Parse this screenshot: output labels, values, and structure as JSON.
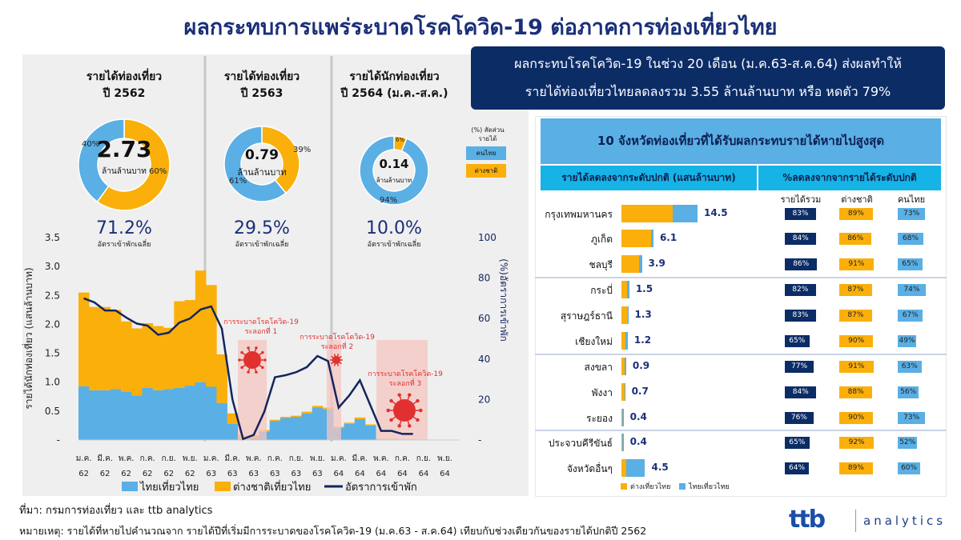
{
  "title": "ผลกระทบการแพร่ระบาดโรคโควิด-19 ต่อภาคการท่องเที่ยวไทย",
  "summary": {
    "lines": [
      "ผลกระทบโรคโควิด-19  ในช่วง 20 เดือน (ม.ค.63-ส.ค.64) ส่งผลทำให้",
      "รายได้ท่องเที่ยวไทยลดลงรวม 3.55 ล้านล้านบาท หรือ หดตัว 79%"
    ]
  },
  "colors": {
    "thai": "#5aafe5",
    "foreign": "#fbaf0a",
    "occupancy": "#14255c",
    "navy": "#0c2c66",
    "covid": "#e03030",
    "wave_shade": "#f4c6c0"
  },
  "panels": [
    {
      "title1": "รายได้ท่องเที่ยว",
      "title2": "ปี 2562",
      "value": "2.73",
      "unit": "ล้านล้านบาท",
      "thai_pct": 40,
      "foreign_pct": 60,
      "thai_label": "40%",
      "foreign_label": "60%",
      "occupancy": "71.2%",
      "occupancy_label": "อัตราเข้าพักเฉลี่ย"
    },
    {
      "title1": "รายได้ท่องเที่ยว",
      "title2": "ปี 2563",
      "value": "0.79",
      "unit": "ล้านล้านบาท",
      "thai_pct": 61,
      "foreign_pct": 39,
      "thai_label": "61%",
      "foreign_label": "39%",
      "occupancy": "29.5%",
      "occupancy_label": "อัตราเข้าพักเฉลี่ย"
    },
    {
      "title1": "รายได้นักท่องเที่ยว",
      "title2": "ปี 2564 (ม.ค.-ส.ค.)",
      "value": "0.14",
      "unit": "ล้านล้านบาท",
      "thai_pct": 94,
      "foreign_pct": 6,
      "thai_label": "94%",
      "foreign_label": "6%",
      "occupancy": "10.0%",
      "occupancy_label": "อัตราเข้าพักเฉลี่ย"
    }
  ],
  "donut_legend": {
    "title1": "(%) สัดส่วน",
    "title2": "รายได้",
    "thai": "คนไทย",
    "foreign": "ต่างชาติ"
  },
  "chart_data": {
    "type": "bar",
    "stacked": true,
    "ylabel": "รายได้นักท่องเที่ยว (แสนล้านบาท)",
    "y2label": "(%)อัตราการเข้าพัก",
    "ylim": [
      0,
      3.5
    ],
    "y2lim": [
      0,
      100
    ],
    "yticks": [
      "-",
      "0.5",
      "1.0",
      "1.5",
      "2.0",
      "2.5",
      "3.0",
      "3.5"
    ],
    "y2ticks": [
      "-",
      "20",
      "40",
      "60",
      "80",
      "100"
    ],
    "xticks": [
      [
        "ม.ค.",
        "62"
      ],
      [
        "มี.ค.",
        "62"
      ],
      [
        "พ.ค.",
        "62"
      ],
      [
        "ก.ค.",
        "62"
      ],
      [
        "ก.ย.",
        "62"
      ],
      [
        "พ.ย.",
        "62"
      ],
      [
        "ม.ค.",
        "63"
      ],
      [
        "มี.ค.",
        "63"
      ],
      [
        "พ.ค.",
        "63"
      ],
      [
        "ก.ค.",
        "63"
      ],
      [
        "ก.ย.",
        "63"
      ],
      [
        "พ.ย.",
        "63"
      ],
      [
        "ม.ค.",
        "64"
      ],
      [
        "มี.ค.",
        "64"
      ],
      [
        "พ.ค.",
        "64"
      ],
      [
        "ก.ค.",
        "64"
      ],
      [
        "ก.ย.",
        "64"
      ],
      [
        "พ.ย.",
        "64"
      ]
    ],
    "categories": [
      "ม.ค. 62",
      "ก.พ. 62",
      "มี.ค. 62",
      "เม.ย. 62",
      "พ.ค. 62",
      "มิ.ย. 62",
      "ก.ค. 62",
      "ส.ค. 62",
      "ก.ย. 62",
      "ต.ค. 62",
      "พ.ย. 62",
      "ธ.ค. 62",
      "ม.ค. 63",
      "ก.พ. 63",
      "มี.ค. 63",
      "เม.ย. 63",
      "พ.ค. 63",
      "มิ.ย. 63",
      "ก.ค. 63",
      "ส.ค. 63",
      "ก.ย. 63",
      "ต.ค. 63",
      "พ.ย. 63",
      "ธ.ค. 63",
      "ม.ค. 64",
      "ก.พ. 64",
      "มี.ค. 64",
      "เม.ย. 64",
      "พ.ค. 64",
      "มิ.ย. 64",
      "ก.ค. 64",
      "ส.ค. 64"
    ],
    "series": [
      {
        "name": "ไทยเที่ยวไทย",
        "type": "bar",
        "axis": "left",
        "values": [
          0.93,
          0.86,
          0.86,
          0.88,
          0.84,
          0.77,
          0.9,
          0.86,
          0.88,
          0.9,
          0.94,
          1.0,
          0.92,
          0.64,
          0.28,
          0.02,
          0.03,
          0.14,
          0.33,
          0.38,
          0.4,
          0.46,
          0.56,
          0.53,
          0.21,
          0.28,
          0.36,
          0.25,
          0.01,
          0.01,
          0.01,
          0.01
        ]
      },
      {
        "name": "ต่างชาติเที่ยวไทย",
        "type": "bar",
        "axis": "left",
        "values": [
          1.62,
          1.44,
          1.44,
          1.37,
          1.21,
          1.16,
          1.12,
          1.11,
          1.06,
          1.5,
          1.48,
          1.93,
          1.76,
          0.84,
          0.18,
          0.06,
          0.05,
          0.03,
          0.02,
          0.02,
          0.02,
          0.03,
          0.03,
          0.03,
          0.02,
          0.02,
          0.03,
          0.02,
          0.01,
          0.01,
          0.0,
          0.0
        ]
      },
      {
        "name": "อัตราการเข้าพัก",
        "type": "line",
        "axis": "right",
        "values": [
          70,
          68,
          64,
          64,
          60.5,
          57.5,
          56.5,
          52,
          53,
          58,
          60,
          64.5,
          66,
          55,
          20,
          0.5,
          2.5,
          14,
          31,
          32,
          33.5,
          36,
          41.5,
          39,
          16,
          22,
          29.5,
          17,
          4.5,
          4.5,
          3,
          3
        ]
      }
    ],
    "waves": [
      {
        "label1": "การระบาดโรคโควิด-19",
        "label2": "ระลอกที่ 1",
        "start": "เม.ย. 63",
        "end": "มิ.ย. 63"
      },
      {
        "label1": "การระบาดโรคโควิด-19",
        "label2": "ระลอกที่ 2",
        "start": "ม.ค. 64",
        "end": "ม.ค. 64"
      },
      {
        "label1": "การระบาดโรคโควิด-19",
        "label2": "ระลอกที่ 3",
        "start": "พ.ค. 64",
        "end": "ก.ย. 64"
      }
    ],
    "legend": [
      "ไทยเที่ยวไทย",
      "ต่างชาติเที่ยวไทย",
      "อัตราการเข้าพัก"
    ],
    "legend_position": "bottom",
    "grid": false
  },
  "table": {
    "title": "10 จังหวัดท่องเที่ยวที่ได้รับผลกระทบรายได้หายไปสูงสุด",
    "left_header": "รายได้ลดลงจากระดับปกติ (แสนล้านบาท)",
    "right_header": "%ลดลงจากจากรายได้ระดับปกติ",
    "columns": [
      "รายได้รวม",
      "ต่างชาติ",
      "คนไทย"
    ],
    "rows": [
      {
        "province": "กรุงเทพมหานคร",
        "loss": "14.5",
        "foreign": 9.8,
        "thai": 4.7,
        "total_pct": "83%",
        "foreign_pct": "89%",
        "thai_pct": "73%"
      },
      {
        "province": "ภูเก็ต",
        "loss": "6.1",
        "foreign": 5.6,
        "thai": 0.5,
        "total_pct": "84%",
        "foreign_pct": "86%",
        "thai_pct": "68%"
      },
      {
        "province": "ชลบุรี",
        "loss": "3.9",
        "foreign": 3.35,
        "thai": 0.55,
        "total_pct": "86%",
        "foreign_pct": "91%",
        "thai_pct": "65%"
      },
      {
        "province": "กระบี่",
        "loss": "1.5",
        "foreign": 1.1,
        "thai": 0.4,
        "total_pct": "82%",
        "foreign_pct": "87%",
        "thai_pct": "74%"
      },
      {
        "province": "สุราษฎร์ธานี",
        "loss": "1.3",
        "foreign": 1.2,
        "thai": 0.1,
        "total_pct": "83%",
        "foreign_pct": "87%",
        "thai_pct": "67%"
      },
      {
        "province": "เชียงใหม่",
        "loss": "1.2",
        "foreign": 0.8,
        "thai": 0.4,
        "total_pct": "65%",
        "foreign_pct": "90%",
        "thai_pct": "49%"
      },
      {
        "province": "สงขลา",
        "loss": "0.9",
        "foreign": 0.6,
        "thai": 0.3,
        "total_pct": "77%",
        "foreign_pct": "91%",
        "thai_pct": "63%"
      },
      {
        "province": "พังงา",
        "loss": "0.7",
        "foreign": 0.65,
        "thai": 0.05,
        "total_pct": "84%",
        "foreign_pct": "88%",
        "thai_pct": "56%"
      },
      {
        "province": "ระยอง",
        "loss": "0.4",
        "foreign": 0.1,
        "thai": 0.3,
        "total_pct": "76%",
        "foreign_pct": "90%",
        "thai_pct": "73%"
      },
      {
        "province": "ประจวบคีรีขันธ์",
        "loss": "0.4",
        "foreign": 0.1,
        "thai": 0.3,
        "total_pct": "65%",
        "foreign_pct": "92%",
        "thai_pct": "52%"
      },
      {
        "province": "จังหวัดอื่นๆ",
        "loss": "4.5",
        "foreign": 0.9,
        "thai": 3.6,
        "total_pct": "64%",
        "foreign_pct": "89%",
        "thai_pct": "60%"
      }
    ],
    "legend": {
      "foreign": "ต่างเที่ยวไทย",
      "thai": "ไทยเที่ยวไทย"
    }
  },
  "footer": {
    "source": "ที่มา: กรมการท่องเที่ยว และ ttb analytics",
    "note": "หมายเหตุ: รายได้ที่หายไปคำนวณจาก รายได้ปีที่เริ่มมีการระบาดของโรคโควิด-19 (ม.ค.63 - ส.ค.64) เทียบกับช่วงเดียวกันของรายได้ปกติปี 2562"
  },
  "logo": {
    "brand": "ttb",
    "suffix": "analytics"
  }
}
